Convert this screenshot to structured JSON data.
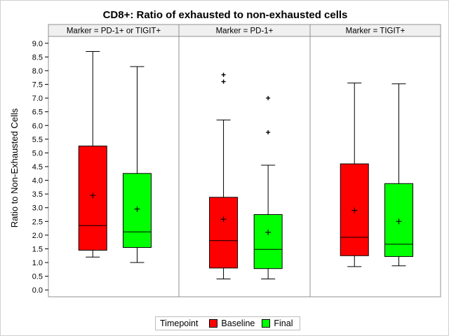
{
  "chart_data": {
    "type": "box",
    "title": "CD8+: Ratio of exhausted to non-exhausted cells",
    "ylabel": "Ratio to Non-Exhausted Cells",
    "ylim": [
      -0.25,
      9.25
    ],
    "yticks": [
      "0.0",
      "0.5",
      "1.0",
      "1.5",
      "2.0",
      "2.5",
      "3.0",
      "3.5",
      "4.0",
      "4.5",
      "5.0",
      "5.5",
      "6.0",
      "6.5",
      "7.0",
      "7.5",
      "8.0",
      "8.5",
      "9.0"
    ],
    "grid": false,
    "legend": {
      "title": "Timepoint",
      "position": "bottom-center",
      "entries": [
        {
          "label": "Baseline",
          "color": "#ff0000"
        },
        {
          "label": "Final",
          "color": "#00ff00"
        }
      ]
    },
    "panels": [
      {
        "header": "Marker = PD-1+ or TIGIT+",
        "boxes": [
          {
            "group": "Baseline",
            "color": "#ff0000",
            "whisker_low": 1.2,
            "q1": 1.45,
            "median": 2.35,
            "mean": 3.45,
            "q3": 5.25,
            "whisker_high": 8.7,
            "outliers": []
          },
          {
            "group": "Final",
            "color": "#00ff00",
            "whisker_low": 1.0,
            "q1": 1.55,
            "median": 2.12,
            "mean": 2.95,
            "q3": 4.25,
            "whisker_high": 8.15,
            "outliers": []
          }
        ]
      },
      {
        "header": "Marker = PD-1+",
        "boxes": [
          {
            "group": "Baseline",
            "color": "#ff0000",
            "whisker_low": 0.4,
            "q1": 0.8,
            "median": 1.8,
            "mean": 2.58,
            "q3": 3.38,
            "whisker_high": 6.2,
            "outliers": [
              7.6,
              7.85
            ]
          },
          {
            "group": "Final",
            "color": "#00ff00",
            "whisker_low": 0.4,
            "q1": 0.78,
            "median": 1.48,
            "mean": 2.1,
            "q3": 2.75,
            "whisker_high": 4.55,
            "outliers": [
              5.75,
              7.0
            ]
          }
        ]
      },
      {
        "header": "Marker = TIGIT+",
        "boxes": [
          {
            "group": "Baseline",
            "color": "#ff0000",
            "whisker_low": 0.85,
            "q1": 1.25,
            "median": 1.92,
            "mean": 2.9,
            "q3": 4.6,
            "whisker_high": 7.55,
            "outliers": []
          },
          {
            "group": "Final",
            "color": "#00ff00",
            "whisker_low": 0.88,
            "q1": 1.22,
            "median": 1.67,
            "mean": 2.5,
            "q3": 3.88,
            "whisker_high": 7.52,
            "outliers": []
          }
        ]
      }
    ]
  }
}
